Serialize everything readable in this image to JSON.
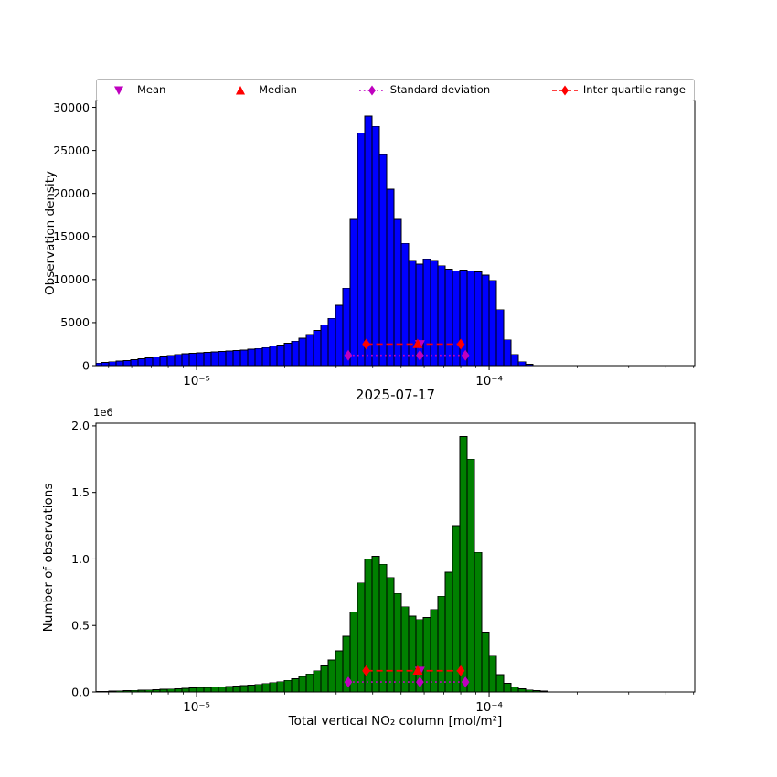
{
  "colors": {
    "magenta": "#bf00bf",
    "red": "#ff0000",
    "axis": "#000000"
  },
  "legend": {
    "items": [
      {
        "label": "Mean",
        "marker": "triangle-down",
        "line": "none",
        "color": "#bf00bf"
      },
      {
        "label": "Median",
        "marker": "triangle-up",
        "line": "none",
        "color": "#ff0000"
      },
      {
        "label": "Standard deviation",
        "marker": "diamond",
        "line": "dotted",
        "color": "#bf00bf"
      },
      {
        "label": "Inter quartile range",
        "marker": "diamond",
        "line": "dashed",
        "color": "#ff0000"
      }
    ]
  },
  "chart_data": [
    {
      "type": "bar",
      "name": "observation-density-histogram",
      "title": "",
      "xlabel": "",
      "ylabel": "Observation density",
      "bar_color": "#0000ff",
      "bar_edge_color": "#000000",
      "x_scale": "log10",
      "xlim_log10": [
        -5.344,
        -3.297
      ],
      "ylim": [
        0,
        30800
      ],
      "grid": false,
      "yticks": {
        "values": [
          0,
          5000,
          10000,
          15000,
          20000,
          25000,
          30000
        ],
        "labels": [
          "0",
          "5000",
          "10000",
          "15000",
          "20000",
          "25000",
          "30000"
        ]
      },
      "xticks": [
        {
          "log10": -5,
          "label": "10⁻⁵"
        },
        {
          "log10": -4,
          "label": "10⁻⁴"
        }
      ],
      "bins_log10_start": -5.35,
      "bins_log10_step": 0.025,
      "values": [
        300,
        380,
        450,
        520,
        600,
        700,
        800,
        900,
        1000,
        1100,
        1200,
        1300,
        1380,
        1450,
        1500,
        1550,
        1600,
        1650,
        1700,
        1750,
        1800,
        1900,
        2000,
        2100,
        2250,
        2400,
        2600,
        2850,
        3200,
        3600,
        4100,
        4700,
        5500,
        7000,
        9000,
        17000,
        27000,
        29000,
        27800,
        24500,
        20500,
        17000,
        14200,
        12200,
        11800,
        12400,
        12200,
        11600,
        11200,
        11000,
        11100,
        11000,
        10900,
        10500,
        9900,
        6500,
        3000,
        1300,
        450,
        150
      ],
      "markers": {
        "mean_x": 5.8e-05,
        "median_x": 5.7e-05,
        "std_range_x": [
          3.3e-05,
          8.3e-05
        ],
        "iqr_range_x": [
          3.8e-05,
          8e-05
        ],
        "iqr_line_y": 2500,
        "std_line_y": 1200
      }
    },
    {
      "type": "bar",
      "name": "number-of-observations-histogram",
      "title": "2025-07-17",
      "xlabel": "Total vertical NO₂ column [mol/m²]",
      "ylabel": "Number of observations",
      "y_unit": "1e6",
      "y_offset_label": "1e6",
      "bar_color": "#008000",
      "bar_edge_color": "#000000",
      "x_scale": "log10",
      "xlim_log10": [
        -5.344,
        -3.297
      ],
      "ylim": [
        0,
        2.02
      ],
      "grid": false,
      "yticks": {
        "values": [
          0,
          0.5,
          1.0,
          1.5,
          2.0
        ],
        "labels": [
          "0.0",
          "0.5",
          "1.0",
          "1.5",
          "2.0"
        ]
      },
      "xticks": [
        {
          "log10": -5,
          "label": "10⁻⁵"
        },
        {
          "log10": -4,
          "label": "10⁻⁴"
        }
      ],
      "bins_log10_start": -5.35,
      "bins_log10_step": 0.025,
      "values": [
        0.004,
        0.005,
        0.007,
        0.008,
        0.01,
        0.012,
        0.014,
        0.016,
        0.018,
        0.02,
        0.022,
        0.024,
        0.027,
        0.03,
        0.032,
        0.034,
        0.036,
        0.039,
        0.042,
        0.045,
        0.048,
        0.052,
        0.057,
        0.063,
        0.07,
        0.078,
        0.088,
        0.1,
        0.115,
        0.135,
        0.16,
        0.195,
        0.24,
        0.31,
        0.42,
        0.6,
        0.82,
        1.0,
        1.02,
        0.96,
        0.86,
        0.74,
        0.64,
        0.57,
        0.545,
        0.56,
        0.62,
        0.72,
        0.9,
        1.25,
        1.92,
        1.75,
        1.05,
        0.45,
        0.27,
        0.13,
        0.065,
        0.04,
        0.025,
        0.015,
        0.01,
        0.006
      ],
      "markers": {
        "mean_x": 5.8e-05,
        "median_x": 5.7e-05,
        "std_range_x": [
          3.3e-05,
          8.3e-05
        ],
        "iqr_range_x": [
          3.8e-05,
          8e-05
        ],
        "iqr_line_y": 0.16,
        "std_line_y": 0.075
      }
    }
  ]
}
